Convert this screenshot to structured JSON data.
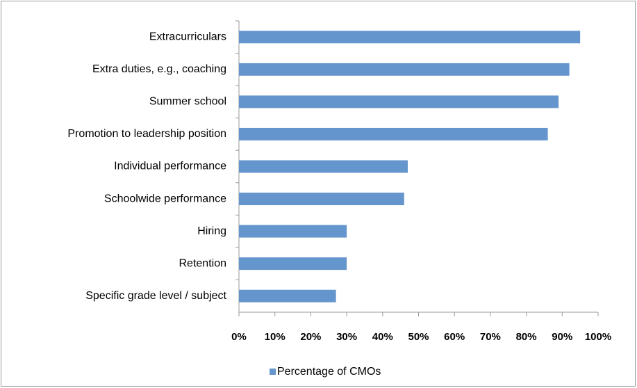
{
  "chart_data": {
    "type": "bar",
    "orientation": "horizontal",
    "categories": [
      "Extracurriculars",
      "Extra duties, e.g., coaching",
      "Summer school",
      "Promotion to leadership position",
      "Individual performance",
      "Schoolwide performance",
      "Hiring",
      "Retention",
      "Specific grade level / subject"
    ],
    "series": [
      {
        "name": "Percentage of CMOs",
        "color": "#6495cc",
        "values": [
          95,
          92,
          89,
          86,
          47,
          46,
          30,
          30,
          27
        ]
      }
    ],
    "xlim": [
      0,
      100
    ],
    "xticks": [
      {
        "value": 0,
        "label": "0%"
      },
      {
        "value": 10,
        "label": "10%"
      },
      {
        "value": 20,
        "label": "20%"
      },
      {
        "value": 30,
        "label": "30%"
      },
      {
        "value": 40,
        "label": "40%"
      },
      {
        "value": 50,
        "label": "50%"
      },
      {
        "value": 60,
        "label": "60%"
      },
      {
        "value": 70,
        "label": "70%"
      },
      {
        "value": 80,
        "label": "80%"
      },
      {
        "value": 90,
        "label": "90%"
      },
      {
        "value": 100,
        "label": "100%"
      }
    ],
    "legend": "bottom"
  }
}
